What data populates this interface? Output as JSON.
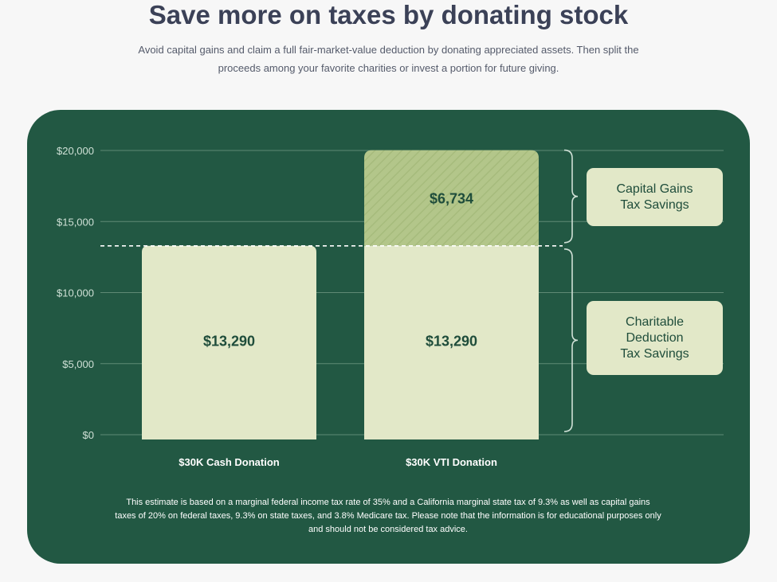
{
  "header": {
    "title": "Save more on taxes by donating stock",
    "subtitle": "Avoid capital gains and claim a full fair-market-value deduction by donating appreciated assets. Then split the proceeds among your favorite charities or invest a portion for future giving."
  },
  "colors": {
    "panel": "#225843",
    "bar_base": "#e2e8c8",
    "bar_top": "#b3c68a",
    "title": "#3b4157"
  },
  "chart_data": {
    "type": "bar",
    "stacked": true,
    "categories": [
      "$30K Cash Donation",
      "$30K VTI Donation"
    ],
    "series": [
      {
        "name": "Charitable Deduction Tax Savings",
        "values": [
          13290,
          13290
        ],
        "labels": [
          "$13,290",
          "$13,290"
        ]
      },
      {
        "name": "Capital Gains Tax Savings",
        "values": [
          0,
          6734
        ],
        "labels": [
          "",
          "$6,734"
        ]
      }
    ],
    "ylim": [
      0,
      20000
    ],
    "yticks": [
      0,
      5000,
      10000,
      15000,
      20000
    ],
    "ytick_labels": [
      "$0",
      "$5,000",
      "$10,000",
      "$15,000",
      "$20,000"
    ],
    "reference_line": 13290,
    "grid": true,
    "legend": [
      {
        "lines": [
          "Capital Gains",
          "Tax Savings"
        ]
      },
      {
        "lines": [
          "Charitable",
          "Deduction",
          "Tax Savings"
        ]
      }
    ]
  },
  "footnote": "This estimate is based on a marginal federal income tax rate of 35% and a California marginal state tax of 9.3% as well as capital gains taxes of 20% on federal taxes, 9.3% on state taxes, and 3.8% Medicare tax. Please note that the information is for educational purposes only and should not be considered tax advice."
}
